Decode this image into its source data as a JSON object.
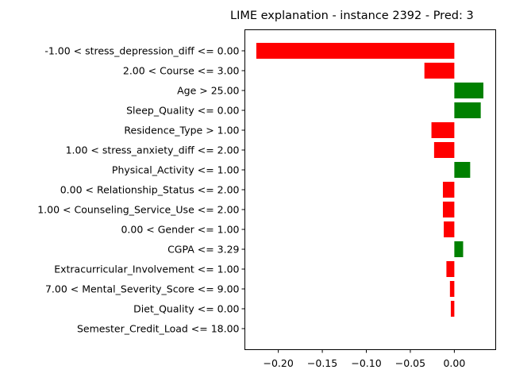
{
  "chart_data": {
    "type": "bar",
    "orientation": "horizontal",
    "title": "LIME explanation - instance 2392 - Pred: 3",
    "categories": [
      "-1.00 < stress_depression_diff <= 0.00",
      "2.00 < Course <= 3.00",
      "Age > 25.00",
      "Sleep_Quality <= 0.00",
      "Residence_Type > 1.00",
      "1.00 < stress_anxiety_diff <= 2.00",
      "Physical_Activity <= 1.00",
      "0.00 < Relationship_Status <= 2.00",
      "1.00 < Counseling_Service_Use <= 2.00",
      "0.00 < Gender <= 1.00",
      "CGPA <= 3.29",
      "Extracurricular_Involvement <= 1.00",
      "7.00 < Mental_Severity_Score <= 9.00",
      "Diet_Quality <= 0.00",
      "Semester_Credit_Load <= 18.00"
    ],
    "values": [
      -0.225,
      -0.034,
      0.033,
      0.03,
      -0.026,
      -0.023,
      0.018,
      -0.013,
      -0.013,
      -0.012,
      0.01,
      -0.009,
      -0.005,
      -0.004,
      0.0
    ],
    "xlim": [
      -0.238,
      0.047
    ],
    "xticks": [
      -0.2,
      -0.15,
      -0.1,
      -0.05,
      0.0
    ],
    "xtick_labels": [
      "−0.20",
      "−0.15",
      "−0.10",
      "−0.05",
      "0.00"
    ],
    "colors": {
      "positive": "#008000",
      "negative": "#ff0000"
    },
    "xlabel": "",
    "ylabel": "",
    "grid": false,
    "legend": false
  }
}
